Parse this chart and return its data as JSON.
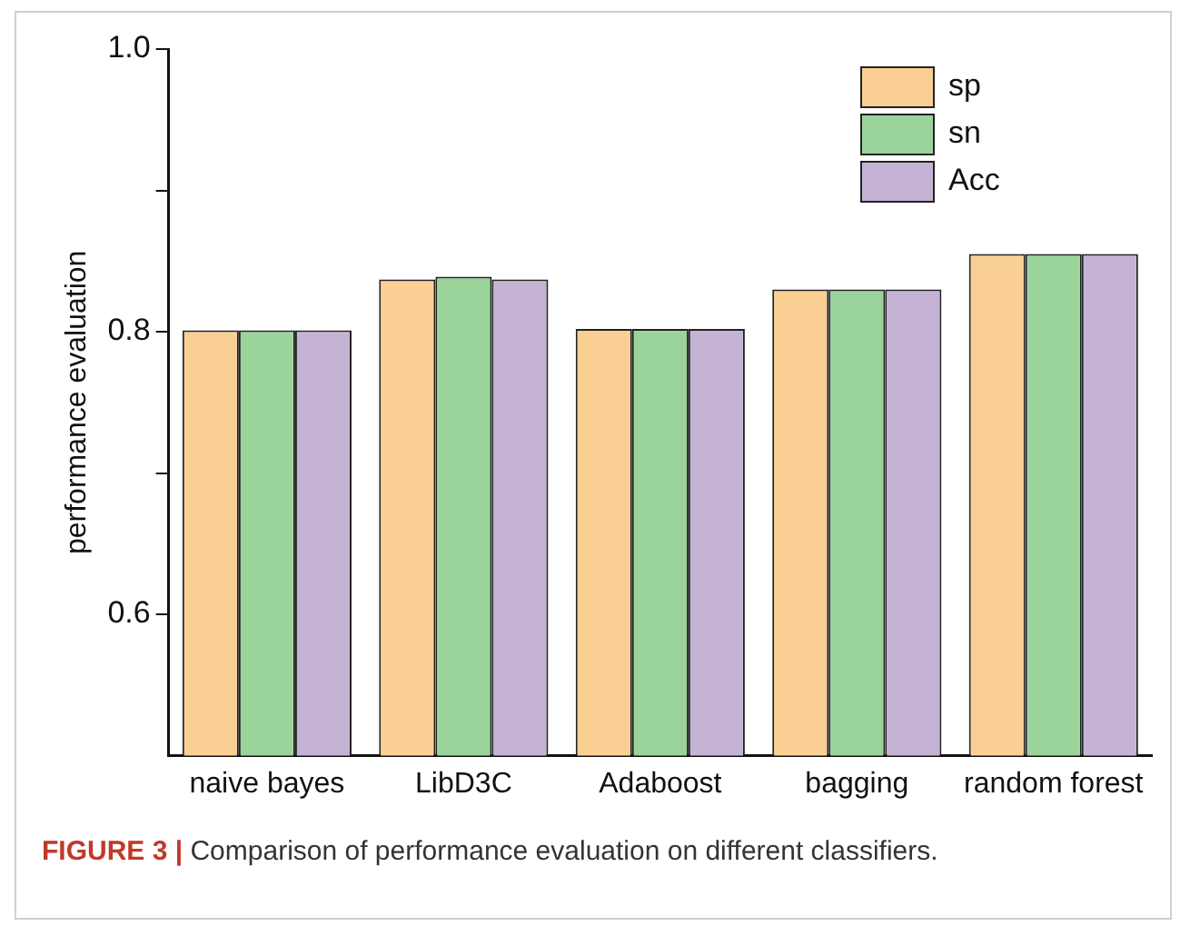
{
  "chart_data": {
    "type": "bar",
    "ylabel": "performance evaluation",
    "categories": [
      "naive bayes",
      "LibD3C",
      "Adaboost",
      "bagging",
      "random forest"
    ],
    "series": [
      {
        "name": "sp",
        "color": "#f9cf93",
        "values": [
          0.801,
          0.837,
          0.802,
          0.83,
          0.855
        ]
      },
      {
        "name": "sn",
        "color": "#9bd49a",
        "values": [
          0.801,
          0.839,
          0.802,
          0.83,
          0.855
        ]
      },
      {
        "name": "Acc",
        "color": "#c5b3d5",
        "values": [
          0.801,
          0.837,
          0.802,
          0.83,
          0.855
        ]
      }
    ],
    "ylim": [
      0.5,
      1.0
    ],
    "yticks": [
      0.6,
      {
        "value": 0.7,
        "label": null
      },
      0.8,
      {
        "value": 0.9,
        "label": null
      },
      {
        "value": 1.0,
        "label": "1.0"
      }
    ],
    "grid": false,
    "legend": "top right",
    "annotations": [
      "FIGURE 3 | Comparison of performance evaluation on different classifiers."
    ]
  }
}
